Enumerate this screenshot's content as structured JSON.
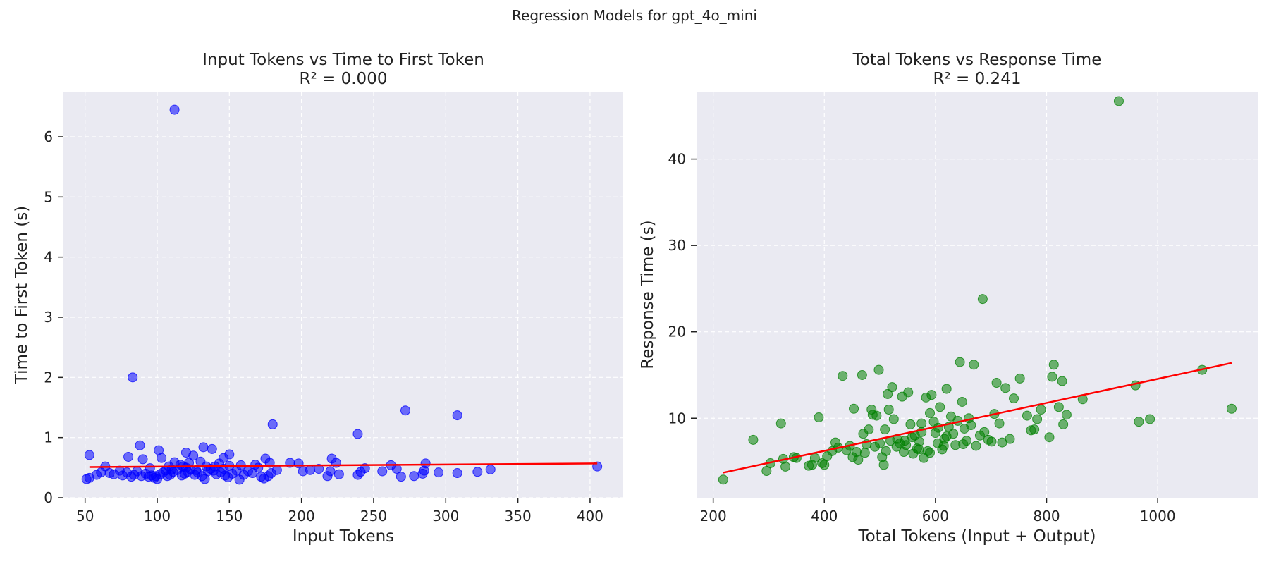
{
  "figure_title": "Regression Models for gpt_4o_mini",
  "colors": {
    "panel_bg": "#EAEAF2",
    "grid": "#ffffff",
    "left_points": "#0000FF",
    "right_points": "#008000",
    "fit_line": "#FF0000"
  },
  "chart_data": [
    {
      "type": "scatter",
      "title": "Input Tokens vs Time to First Token",
      "subtitle": "R² = 0.000",
      "xlabel": "Input Tokens",
      "ylabel": "Time to First Token (s)",
      "xlim": [
        35,
        423
      ],
      "ylim": [
        0,
        6.75
      ],
      "xticks": [
        50,
        100,
        150,
        200,
        250,
        300,
        350,
        400
      ],
      "yticks": [
        0,
        1,
        2,
        3,
        4,
        5,
        6
      ],
      "grid": true,
      "regression_line": {
        "x": [
          53,
          405
        ],
        "y": [
          0.51,
          0.57
        ]
      },
      "points": [
        [
          112,
          6.45
        ],
        [
          83,
          2.0
        ],
        [
          272,
          1.45
        ],
        [
          308,
          1.37
        ],
        [
          180,
          1.22
        ],
        [
          239,
          1.06
        ],
        [
          88,
          0.87
        ],
        [
          132,
          0.84
        ],
        [
          138,
          0.81
        ],
        [
          101,
          0.79
        ],
        [
          53,
          0.71
        ],
        [
          80,
          0.68
        ],
        [
          90,
          0.64
        ],
        [
          103,
          0.66
        ],
        [
          120,
          0.75
        ],
        [
          125,
          0.7
        ],
        [
          146,
          0.66
        ],
        [
          150,
          0.72
        ],
        [
          175,
          0.65
        ],
        [
          221,
          0.65
        ],
        [
          112,
          0.59
        ],
        [
          130,
          0.6
        ],
        [
          143,
          0.57
        ],
        [
          158,
          0.54
        ],
        [
          168,
          0.55
        ],
        [
          178,
          0.58
        ],
        [
          192,
          0.58
        ],
        [
          198,
          0.57
        ],
        [
          224,
          0.58
        ],
        [
          262,
          0.54
        ],
        [
          286,
          0.57
        ],
        [
          64,
          0.52
        ],
        [
          74,
          0.45
        ],
        [
          95,
          0.49
        ],
        [
          108,
          0.52
        ],
        [
          116,
          0.55
        ],
        [
          122,
          0.58
        ],
        [
          140,
          0.52
        ],
        [
          150,
          0.53
        ],
        [
          170,
          0.5
        ],
        [
          183,
          0.46
        ],
        [
          201,
          0.44
        ],
        [
          206,
          0.46
        ],
        [
          212,
          0.48
        ],
        [
          220,
          0.44
        ],
        [
          244,
          0.49
        ],
        [
          256,
          0.44
        ],
        [
          266,
          0.48
        ],
        [
          285,
          0.45
        ],
        [
          295,
          0.42
        ],
        [
          308,
          0.41
        ],
        [
          322,
          0.43
        ],
        [
          331,
          0.47
        ],
        [
          405,
          0.52
        ],
        [
          51,
          0.31
        ],
        [
          53,
          0.33
        ],
        [
          58,
          0.38
        ],
        [
          61,
          0.42
        ],
        [
          67,
          0.41
        ],
        [
          70,
          0.39
        ],
        [
          76,
          0.37
        ],
        [
          79,
          0.42
        ],
        [
          82,
          0.35
        ],
        [
          84,
          0.38
        ],
        [
          86,
          0.44
        ],
        [
          89,
          0.36
        ],
        [
          92,
          0.4
        ],
        [
          94,
          0.35
        ],
        [
          96,
          0.37
        ],
        [
          98,
          0.33
        ],
        [
          99,
          0.36
        ],
        [
          100,
          0.31
        ],
        [
          102,
          0.39
        ],
        [
          104,
          0.42
        ],
        [
          106,
          0.45
        ],
        [
          107,
          0.36
        ],
        [
          109,
          0.38
        ],
        [
          111,
          0.43
        ],
        [
          114,
          0.46
        ],
        [
          117,
          0.37
        ],
        [
          119,
          0.4
        ],
        [
          121,
          0.43
        ],
        [
          123,
          0.47
        ],
        [
          126,
          0.38
        ],
        [
          128,
          0.42
        ],
        [
          131,
          0.36
        ],
        [
          133,
          0.31
        ],
        [
          135,
          0.44
        ],
        [
          137,
          0.48
        ],
        [
          141,
          0.39
        ],
        [
          144,
          0.42
        ],
        [
          147,
          0.37
        ],
        [
          149,
          0.34
        ],
        [
          152,
          0.4
        ],
        [
          155,
          0.45
        ],
        [
          157,
          0.3
        ],
        [
          160,
          0.38
        ],
        [
          163,
          0.44
        ],
        [
          166,
          0.41
        ],
        [
          172,
          0.35
        ],
        [
          174,
          0.32
        ],
        [
          177,
          0.36
        ],
        [
          179,
          0.41
        ],
        [
          218,
          0.36
        ],
        [
          226,
          0.39
        ],
        [
          239,
          0.38
        ],
        [
          241,
          0.43
        ],
        [
          269,
          0.35
        ],
        [
          278,
          0.36
        ],
        [
          284,
          0.4
        ],
        [
          120,
          0.5
        ],
        [
          134,
          0.52
        ],
        [
          146,
          0.48
        ],
        [
          110,
          0.47
        ],
        [
          118,
          0.52
        ],
        [
          127,
          0.46
        ],
        [
          139,
          0.45
        ]
      ]
    },
    {
      "type": "scatter",
      "title": "Total Tokens vs Response Time",
      "subtitle": "R² = 0.241",
      "xlabel": "Total Tokens (Input + Output)",
      "ylabel": "Response Time (s)",
      "xlim": [
        170,
        1180
      ],
      "ylim": [
        0.8,
        47.8
      ],
      "xticks": [
        200,
        400,
        600,
        800,
        1000
      ],
      "yticks": [
        10,
        20,
        30,
        40
      ],
      "grid": true,
      "regression_line": {
        "x": [
          218,
          1133
        ],
        "y": [
          3.7,
          16.4
        ]
      },
      "points": [
        [
          930,
          46.7
        ],
        [
          685,
          23.8
        ],
        [
          218,
          2.9
        ],
        [
          272,
          7.5
        ],
        [
          296,
          3.9
        ],
        [
          303,
          4.8
        ],
        [
          322,
          9.4
        ],
        [
          326,
          5.3
        ],
        [
          330,
          4.4
        ],
        [
          345,
          5.5
        ],
        [
          350,
          5.4
        ],
        [
          372,
          4.5
        ],
        [
          378,
          4.6
        ],
        [
          383,
          5.4
        ],
        [
          390,
          10.1
        ],
        [
          396,
          4.8
        ],
        [
          400,
          4.6
        ],
        [
          405,
          5.6
        ],
        [
          414,
          6.2
        ],
        [
          420,
          7.2
        ],
        [
          425,
          6.6
        ],
        [
          433,
          14.9
        ],
        [
          440,
          6.3
        ],
        [
          446,
          6.8
        ],
        [
          451,
          5.5
        ],
        [
          453,
          11.1
        ],
        [
          458,
          6.1
        ],
        [
          461,
          5.2
        ],
        [
          468,
          15.0
        ],
        [
          470,
          8.2
        ],
        [
          473,
          6.0
        ],
        [
          476,
          7.0
        ],
        [
          480,
          8.7
        ],
        [
          485,
          11.0
        ],
        [
          487,
          10.4
        ],
        [
          491,
          6.7
        ],
        [
          494,
          10.3
        ],
        [
          498,
          15.6
        ],
        [
          500,
          7.1
        ],
        [
          504,
          5.5
        ],
        [
          507,
          4.6
        ],
        [
          509,
          8.7
        ],
        [
          511,
          6.2
        ],
        [
          514,
          12.8
        ],
        [
          516,
          11.0
        ],
        [
          519,
          7.4
        ],
        [
          522,
          13.6
        ],
        [
          525,
          9.9
        ],
        [
          531,
          7.6
        ],
        [
          536,
          7.1
        ],
        [
          540,
          12.5
        ],
        [
          543,
          6.1
        ],
        [
          547,
          6.9
        ],
        [
          551,
          13.0
        ],
        [
          555,
          9.3
        ],
        [
          558,
          7.8
        ],
        [
          563,
          8.0
        ],
        [
          567,
          6.5
        ],
        [
          571,
          7.3
        ],
        [
          575,
          8.4
        ],
        [
          579,
          5.4
        ],
        [
          583,
          12.4
        ],
        [
          586,
          6.2
        ],
        [
          590,
          10.6
        ],
        [
          593,
          12.7
        ],
        [
          597,
          9.6
        ],
        [
          600,
          8.3
        ],
        [
          604,
          7.1
        ],
        [
          608,
          11.3
        ],
        [
          612,
          6.4
        ],
        [
          616,
          7.6
        ],
        [
          620,
          13.4
        ],
        [
          624,
          9.0
        ],
        [
          628,
          10.2
        ],
        [
          632,
          8.2
        ],
        [
          636,
          6.9
        ],
        [
          640,
          9.7
        ],
        [
          644,
          16.5
        ],
        [
          648,
          11.9
        ],
        [
          652,
          8.8
        ],
        [
          656,
          7.4
        ],
        [
          660,
          10.0
        ],
        [
          664,
          9.2
        ],
        [
          669,
          16.2
        ],
        [
          673,
          6.8
        ],
        [
          680,
          8.0
        ],
        [
          688,
          8.4
        ],
        [
          695,
          7.5
        ],
        [
          701,
          7.3
        ],
        [
          706,
          10.5
        ],
        [
          710,
          14.1
        ],
        [
          715,
          9.4
        ],
        [
          720,
          7.2
        ],
        [
          726,
          13.5
        ],
        [
          734,
          7.6
        ],
        [
          741,
          12.3
        ],
        [
          752,
          14.6
        ],
        [
          765,
          10.3
        ],
        [
          772,
          8.6
        ],
        [
          778,
          8.7
        ],
        [
          783,
          9.9
        ],
        [
          790,
          11.0
        ],
        [
          805,
          7.8
        ],
        [
          810,
          14.8
        ],
        [
          813,
          16.2
        ],
        [
          822,
          11.3
        ],
        [
          828,
          14.3
        ],
        [
          830,
          9.3
        ],
        [
          836,
          10.4
        ],
        [
          865,
          12.2
        ],
        [
          960,
          13.8
        ],
        [
          966,
          9.6
        ],
        [
          986,
          9.9
        ],
        [
          1080,
          15.6
        ],
        [
          1133,
          11.1
        ],
        [
          575,
          9.4
        ],
        [
          605,
          8.9
        ],
        [
          560,
          5.9
        ],
        [
          545,
          7.4
        ],
        [
          530,
          6.7
        ],
        [
          615,
          6.8
        ],
        [
          650,
          7.0
        ],
        [
          590,
          6.0
        ],
        [
          570,
          6.4
        ],
        [
          620,
          7.9
        ]
      ]
    }
  ]
}
